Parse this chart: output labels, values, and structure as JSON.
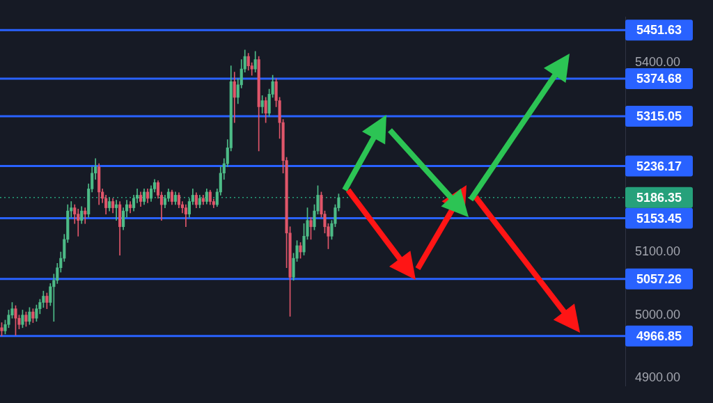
{
  "chart_data": {
    "type": "candlestick",
    "categories": [
      null,
      null,
      null,
      null,
      null,
      null,
      null,
      null,
      null,
      null,
      null,
      null,
      null,
      null,
      null,
      null,
      null,
      null,
      null,
      null,
      null,
      null,
      null,
      null,
      null,
      null,
      null,
      null,
      null,
      null,
      null,
      null,
      null,
      null,
      null,
      null,
      null,
      null,
      null,
      null,
      null,
      null,
      null,
      null,
      null,
      null,
      null,
      null,
      null,
      null,
      null,
      null,
      null,
      null,
      null,
      null,
      null,
      null,
      null,
      null,
      null,
      null,
      null,
      null,
      null,
      null,
      null,
      null,
      null,
      null,
      null,
      null,
      null,
      null,
      null,
      null,
      null,
      null,
      null,
      null,
      null,
      null,
      null,
      null,
      null,
      null,
      null,
      null,
      null,
      null,
      null,
      null,
      null,
      null,
      null,
      null,
      null,
      null,
      null,
      null,
      null,
      null,
      null,
      null,
      null,
      null,
      null,
      null,
      null,
      null,
      null,
      null,
      null,
      null,
      null,
      null,
      null,
      null,
      null,
      null,
      null,
      null,
      null,
      null,
      null,
      null,
      null,
      null,
      null,
      null,
      null,
      null,
      null,
      null,
      null,
      null,
      null,
      null,
      null,
      null,
      null,
      null,
      null,
      null,
      null,
      null,
      null,
      null,
      null,
      null,
      null,
      null,
      null,
      null,
      null,
      null,
      null,
      null,
      null,
      null,
      null,
      null,
      null,
      null,
      null,
      null,
      null,
      null,
      null,
      null,
      null,
      null,
      null,
      null,
      null,
      null,
      null,
      null,
      null,
      null
    ],
    "ohlc": [
      [
        4980,
        4988,
        4967,
        4975
      ],
      [
        4975,
        4992,
        4970,
        4985
      ],
      [
        4985,
        5008,
        4980,
        5000
      ],
      [
        5000,
        5020,
        4995,
        5010
      ],
      [
        5010,
        5015,
        4968,
        4995
      ],
      [
        4995,
        5000,
        4978,
        4985
      ],
      [
        4985,
        5008,
        4980,
        5000
      ],
      [
        5000,
        5005,
        4982,
        4990
      ],
      [
        4990,
        5012,
        4985,
        5005
      ],
      [
        5005,
        5010,
        4988,
        4995
      ],
      [
        4995,
        5016,
        4990,
        5010
      ],
      [
        5010,
        5025,
        5002,
        5020
      ],
      [
        5020,
        5038,
        5012,
        5030
      ],
      [
        5030,
        5035,
        5010,
        5020
      ],
      [
        5020,
        5050,
        5015,
        5045
      ],
      [
        5045,
        5065,
        4990,
        5055
      ],
      [
        5055,
        5082,
        5050,
        5075
      ],
      [
        5075,
        5100,
        5068,
        5090
      ],
      [
        5090,
        5128,
        5085,
        5120
      ],
      [
        5120,
        5175,
        5115,
        5165
      ],
      [
        5165,
        5180,
        5155,
        5170
      ],
      [
        5170,
        5175,
        5145,
        5160
      ],
      [
        5160,
        5168,
        5125,
        5150
      ],
      [
        5150,
        5172,
        5145,
        5165
      ],
      [
        5165,
        5170,
        5145,
        5160
      ],
      [
        5160,
        5208,
        5155,
        5200
      ],
      [
        5200,
        5235,
        5195,
        5225
      ],
      [
        5225,
        5248,
        5215,
        5235
      ],
      [
        5235,
        5240,
        5175,
        5195
      ],
      [
        5195,
        5200,
        5178,
        5185
      ],
      [
        5185,
        5190,
        5160,
        5170
      ],
      [
        5170,
        5186,
        5165,
        5180
      ],
      [
        5180,
        5185,
        5162,
        5170
      ],
      [
        5170,
        5182,
        5150,
        5175
      ],
      [
        5175,
        5180,
        5095,
        5140
      ],
      [
        5140,
        5170,
        5135,
        5165
      ],
      [
        5165,
        5182,
        5155,
        5175
      ],
      [
        5175,
        5180,
        5162,
        5170
      ],
      [
        5170,
        5190,
        5165,
        5185
      ],
      [
        5185,
        5200,
        5178,
        5190
      ],
      [
        5190,
        5195,
        5172,
        5180
      ],
      [
        5180,
        5200,
        5175,
        5195
      ],
      [
        5195,
        5200,
        5178,
        5185
      ],
      [
        5185,
        5205,
        5180,
        5200
      ],
      [
        5200,
        5215,
        5195,
        5210
      ],
      [
        5210,
        5213,
        5185,
        5190
      ],
      [
        5190,
        5195,
        5150,
        5175
      ],
      [
        5175,
        5190,
        5170,
        5185
      ],
      [
        5185,
        5200,
        5180,
        5195
      ],
      [
        5195,
        5198,
        5175,
        5180
      ],
      [
        5180,
        5195,
        5175,
        5190
      ],
      [
        5190,
        5194,
        5170,
        5175
      ],
      [
        5175,
        5180,
        5162,
        5170
      ],
      [
        5170,
        5175,
        5140,
        5160
      ],
      [
        5160,
        5185,
        5155,
        5180
      ],
      [
        5180,
        5200,
        5175,
        5190
      ],
      [
        5190,
        5194,
        5170,
        5175
      ],
      [
        5175,
        5190,
        5170,
        5185
      ],
      [
        5185,
        5190,
        5175,
        5180
      ],
      [
        5180,
        5200,
        5176,
        5195
      ],
      [
        5195,
        5198,
        5175,
        5180
      ],
      [
        5180,
        5184,
        5170,
        5175
      ],
      [
        5175,
        5200,
        5172,
        5195
      ],
      [
        5195,
        5235,
        5190,
        5225
      ],
      [
        5225,
        5248,
        5215,
        5240
      ],
      [
        5240,
        5278,
        5235,
        5265
      ],
      [
        5265,
        5395,
        5260,
        5370
      ],
      [
        5370,
        5385,
        5305,
        5345
      ],
      [
        5345,
        5375,
        5335,
        5365
      ],
      [
        5365,
        5405,
        5360,
        5390
      ],
      [
        5390,
        5420,
        5385,
        5410
      ],
      [
        5410,
        5415,
        5388,
        5395
      ],
      [
        5395,
        5400,
        5380,
        5390
      ],
      [
        5390,
        5418,
        5385,
        5405
      ],
      [
        5405,
        5410,
        5260,
        5330
      ],
      [
        5330,
        5348,
        5320,
        5340
      ],
      [
        5340,
        5345,
        5305,
        5320
      ],
      [
        5320,
        5358,
        5315,
        5350
      ],
      [
        5350,
        5380,
        5345,
        5370
      ],
      [
        5370,
        5375,
        5330,
        5340
      ],
      [
        5340,
        5345,
        5280,
        5305
      ],
      [
        5305,
        5310,
        5225,
        5245
      ],
      [
        5245,
        5250,
        5075,
        5130
      ],
      [
        5130,
        5140,
        4998,
        5060
      ],
      [
        5060,
        5098,
        5055,
        5090
      ],
      [
        5090,
        5118,
        5085,
        5110
      ],
      [
        5110,
        5115,
        5090,
        5100
      ],
      [
        5100,
        5145,
        5095,
        5125
      ],
      [
        5125,
        5170,
        5120,
        5150
      ],
      [
        5150,
        5155,
        5120,
        5140
      ],
      [
        5140,
        5175,
        5135,
        5165
      ],
      [
        5165,
        5205,
        5160,
        5190
      ],
      [
        5190,
        5195,
        5155,
        5160
      ],
      [
        5160,
        5165,
        5130,
        5140
      ],
      [
        5140,
        5145,
        5105,
        5125
      ],
      [
        5125,
        5150,
        5120,
        5145
      ],
      [
        5145,
        5175,
        5140,
        5170
      ],
      [
        5170,
        5192,
        5165,
        5186
      ],
      null,
      null,
      null,
      null,
      null,
      null,
      null,
      null,
      null,
      null,
      null,
      null,
      null,
      null,
      null,
      null,
      null,
      null,
      null,
      null,
      null,
      null,
      null,
      null,
      null,
      null,
      null,
      null,
      null,
      null,
      null,
      null,
      null,
      null,
      null,
      null,
      null,
      null,
      null,
      null,
      null,
      null,
      null,
      null,
      null,
      null,
      null,
      null,
      null,
      null,
      null,
      null,
      null,
      null,
      null,
      null,
      null,
      null,
      null,
      null,
      null,
      null,
      null,
      null,
      null,
      null,
      null,
      null,
      null,
      null,
      null,
      null,
      null,
      null,
      null,
      null,
      null,
      null,
      null,
      null,
      null,
      null
    ],
    "colors": [
      "#e0566a",
      "#4dbb87",
      "#4dbb87",
      "#4dbb87",
      "#e0566a",
      "#e0566a",
      "#4dbb87",
      "#e0566a",
      "#4dbb87",
      "#e0566a",
      "#4dbb87",
      "#4dbb87",
      "#4dbb87",
      "#e0566a",
      "#4dbb87",
      "#4dbb87",
      "#4dbb87",
      "#4dbb87",
      "#4dbb87",
      "#4dbb87",
      "#4dbb87",
      "#e0566a",
      "#e0566a",
      "#4dbb87",
      "#e0566a",
      "#4dbb87",
      "#4dbb87",
      "#4dbb87",
      "#e0566a",
      "#e0566a",
      "#e0566a",
      "#4dbb87",
      "#e0566a",
      "#4dbb87",
      "#e0566a",
      "#4dbb87",
      "#4dbb87",
      "#e0566a",
      "#4dbb87",
      "#4dbb87",
      "#e0566a",
      "#4dbb87",
      "#e0566a",
      "#4dbb87",
      "#4dbb87",
      "#e0566a",
      "#e0566a",
      "#4dbb87",
      "#4dbb87",
      "#e0566a",
      "#4dbb87",
      "#e0566a",
      "#e0566a",
      "#e0566a",
      "#4dbb87",
      "#4dbb87",
      "#e0566a",
      "#4dbb87",
      "#e0566a",
      "#4dbb87",
      "#e0566a",
      "#e0566a",
      "#4dbb87",
      "#4dbb87",
      "#4dbb87",
      "#4dbb87",
      "#4dbb87",
      "#e0566a",
      "#4dbb87",
      "#4dbb87",
      "#4dbb87",
      "#e0566a",
      "#e0566a",
      "#4dbb87",
      "#e0566a",
      "#4dbb87",
      "#e0566a",
      "#4dbb87",
      "#4dbb87",
      "#e0566a",
      "#e0566a",
      "#e0566a",
      "#e0566a",
      "#e0566a",
      "#4dbb87",
      "#4dbb87",
      "#e0566a",
      "#4dbb87",
      "#4dbb87",
      "#e0566a",
      "#4dbb87",
      "#4dbb87",
      "#e0566a",
      "#e0566a",
      "#e0566a",
      "#4dbb87",
      "#4dbb87",
      "#4dbb87",
      null,
      null,
      null,
      null,
      null,
      null,
      null,
      null,
      null,
      null,
      null,
      null,
      null,
      null,
      null,
      null,
      null,
      null,
      null,
      null,
      null,
      null,
      null,
      null,
      null,
      null,
      null,
      null,
      null,
      null,
      null,
      null,
      null,
      null,
      null,
      null,
      null,
      null,
      null,
      null,
      null,
      null,
      null,
      null,
      null,
      null,
      null,
      null,
      null,
      null,
      null,
      null,
      null,
      null,
      null,
      null,
      null,
      null,
      null,
      null,
      null,
      null,
      null,
      null,
      null,
      null,
      null,
      null,
      null,
      null,
      null,
      null,
      null,
      null,
      null,
      null,
      null,
      null,
      null,
      null,
      null,
      null
    ],
    "ylim": [
      4888,
      5472
    ],
    "yticks": [
      {
        "value": 4900,
        "label": "4900.00"
      },
      {
        "value": 5000,
        "label": "5000.00"
      },
      {
        "value": 5100,
        "label": "5100.00"
      },
      {
        "value": 5400,
        "label": "5400.00"
      }
    ],
    "tick_labels": "y",
    "ref_lines": [
      {
        "axis": "y",
        "value": 5451.63,
        "label": "5451.63",
        "color": "#2962ff"
      },
      {
        "axis": "y",
        "value": 5374.68,
        "label": "5374.68",
        "color": "#2962ff"
      },
      {
        "axis": "y",
        "value": 5315.05,
        "label": "5315.05",
        "color": "#2962ff"
      },
      {
        "axis": "y",
        "value": 5236.17,
        "label": "5236.17",
        "color": "#2962ff"
      },
      {
        "axis": "y",
        "value": 5153.45,
        "label": "5153.45",
        "color": "#2962ff"
      },
      {
        "axis": "y",
        "value": 5057.26,
        "label": "5057.26",
        "color": "#2962ff"
      },
      {
        "axis": "y",
        "value": 4966.85,
        "label": "4966.85",
        "color": "#2962ff"
      },
      {
        "axis": "y",
        "value": 5186.35,
        "label": "5186.35",
        "color": "#26a17b",
        "line_style": "dotted"
      }
    ]
  }
}
